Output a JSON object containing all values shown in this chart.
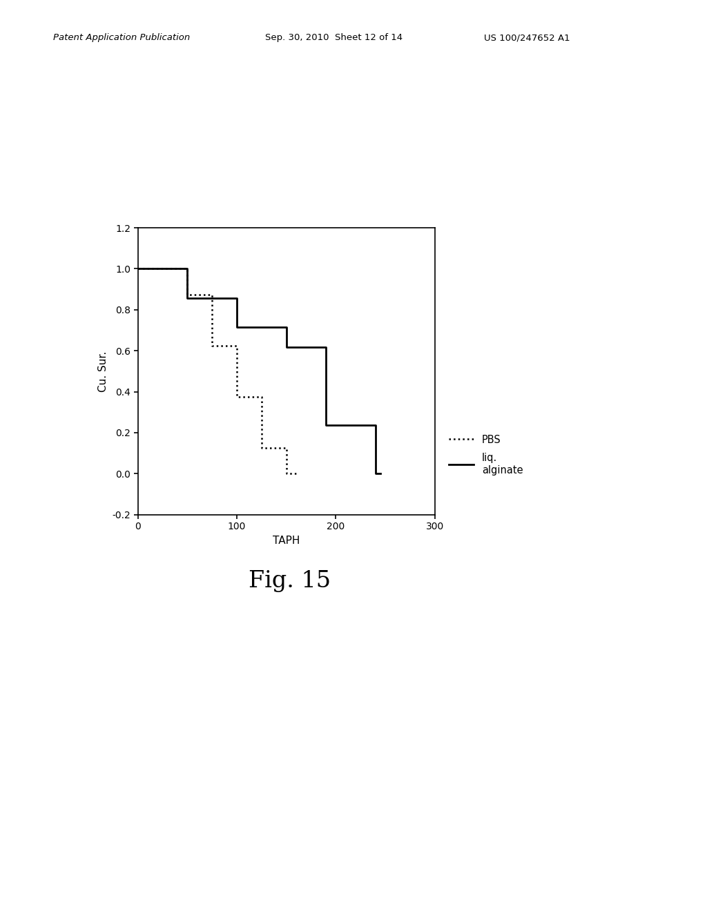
{
  "title": "Fig. 15",
  "xlabel": "TAPH",
  "ylabel": "Cu. Sur.",
  "xlim": [
    0,
    300
  ],
  "ylim": [
    -0.2,
    1.2
  ],
  "xticks": [
    0,
    100,
    200,
    300
  ],
  "yticks": [
    -0.2,
    0.0,
    0.2,
    0.4,
    0.6,
    0.8,
    1.0,
    1.2
  ],
  "pbs_x": [
    0,
    50,
    50,
    75,
    75,
    100,
    100,
    125,
    125,
    150,
    150,
    160,
    160
  ],
  "pbs_y": [
    1.0,
    1.0,
    0.875,
    0.875,
    0.625,
    0.625,
    0.375,
    0.375,
    0.125,
    0.125,
    0.0,
    0.0,
    0.0
  ],
  "alginate_x": [
    0,
    50,
    50,
    100,
    100,
    150,
    150,
    190,
    190,
    240,
    240,
    245,
    245
  ],
  "alginate_y": [
    1.0,
    1.0,
    0.857,
    0.857,
    0.714,
    0.714,
    0.619,
    0.619,
    0.238,
    0.238,
    0.0,
    0.0,
    0.0
  ],
  "background_color": "#ffffff",
  "header_italic": "Patent Application Publication",
  "header_mid": "Sep. 30, 2010  Sheet 12 of 14",
  "header_right": "US 100/247652 A1",
  "legend_pbs": "PBS",
  "legend_alg_line1": "liq.",
  "legend_alg_line2": "alginate"
}
